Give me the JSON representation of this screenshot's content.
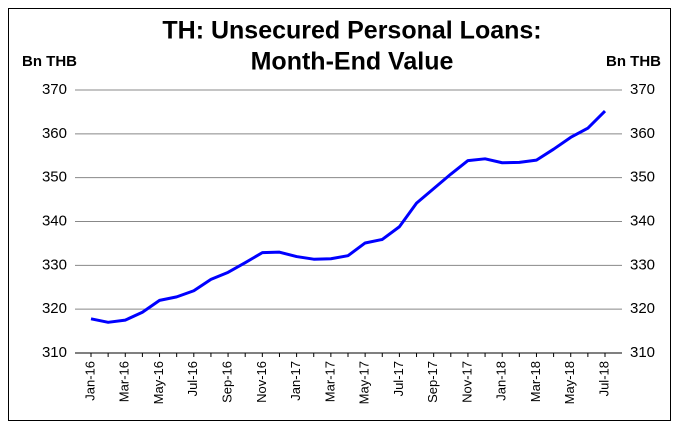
{
  "chart_data": {
    "type": "line",
    "title": [
      "TH: Unsecured Personal Loans:",
      "Month-End Value"
    ],
    "y_label": "Bn THB",
    "y2_label": "Bn THB",
    "categories": [
      "Jan-16",
      null,
      "Mar-16",
      null,
      "May-16",
      null,
      "Jul-16",
      null,
      "Sep-16",
      null,
      "Nov-16",
      null,
      "Jan-17",
      null,
      "Mar-17",
      null,
      "May-17",
      null,
      "Jul-17",
      null,
      "Sep-17",
      null,
      "Nov-17",
      null,
      "Jan-18",
      null,
      "Mar-18",
      null,
      "May-18",
      null,
      "Jul-18"
    ],
    "series": [
      {
        "name": "Unsecured Personal Loans",
        "color": "#0000ff",
        "values": [
          317.8,
          317.0,
          317.5,
          319.3,
          322.0,
          322.8,
          324.2,
          326.8,
          328.4,
          330.6,
          332.9,
          333.0,
          332.0,
          331.4,
          331.5,
          332.2,
          335.1,
          335.9,
          338.8,
          344.2,
          347.5,
          350.8,
          353.9,
          354.3,
          353.4,
          353.5,
          354.0,
          356.5,
          359.2,
          361.3,
          365.2
        ]
      }
    ],
    "ylim": [
      310,
      370
    ],
    "yticks": [
      310,
      320,
      330,
      340,
      350,
      360,
      370
    ],
    "y2lim": [
      310,
      370
    ],
    "y2ticks": [
      310,
      320,
      330,
      340,
      350,
      360,
      370
    ],
    "grid": true
  }
}
